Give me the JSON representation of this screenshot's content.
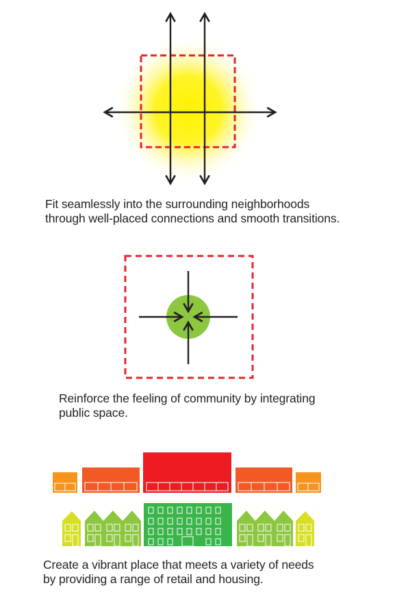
{
  "panels": [
    {
      "id": "connections",
      "caption_lines": [
        "Fit seamlessly into the surrounding neighborhoods",
        "through well-placed connections and smooth transitions."
      ]
    },
    {
      "id": "community",
      "caption_lines": [
        "Reinforce the feeling of community by integrating",
        "public space."
      ]
    },
    {
      "id": "vibrant-place",
      "caption_lines": [
        "Create a vibrant place that meets a variety of needs",
        "by providing a range of retail and housing."
      ]
    }
  ],
  "colors": {
    "glow": "#fff200",
    "dashed_box": "#e8222a",
    "arrows": "#231f20",
    "plaza": "#8dc63f",
    "retail_orange": "#f7941d",
    "retail_dark_orange": "#f15a24",
    "retail_red": "#ed1c24",
    "house_yellow_green": "#d7df23",
    "house_light_green": "#8dc63f",
    "housing_green": "#39b54a"
  },
  "icons": [
    "four-way-arrows-icon",
    "inward-arrows-icon",
    "storefront-icon",
    "house-icon"
  ]
}
